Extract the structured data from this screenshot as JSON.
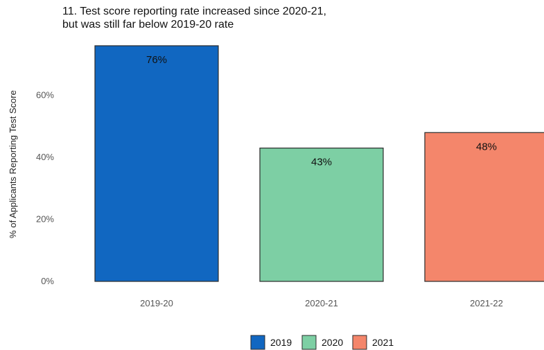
{
  "chart_data": {
    "type": "bar",
    "title": "11. Test score reporting rate increased since 2020-21,",
    "subtitle": "but was still far below 2019-20 rate",
    "xlabel": "",
    "ylabel": "% of Applicants Reporting Test Score",
    "ylim": [
      0,
      0.76
    ],
    "yticks": [
      0,
      0.2,
      0.4,
      0.6
    ],
    "ytick_labels": [
      "0%",
      "20%",
      "40%",
      "60%"
    ],
    "grid": false,
    "legend_position": "bottom",
    "categories": [
      "2019-20",
      "2020-21",
      "2021-22"
    ],
    "values": [
      0.76,
      0.43,
      0.48
    ],
    "value_labels": [
      "76%",
      "43%",
      "48%"
    ],
    "colors": [
      "#1167c1",
      "#7dcfa4",
      "#f4866b"
    ],
    "legend": [
      {
        "label": "2019",
        "color": "#1167c1"
      },
      {
        "label": "2020",
        "color": "#7dcfa4"
      },
      {
        "label": "2021",
        "color": "#f4866b"
      }
    ]
  }
}
